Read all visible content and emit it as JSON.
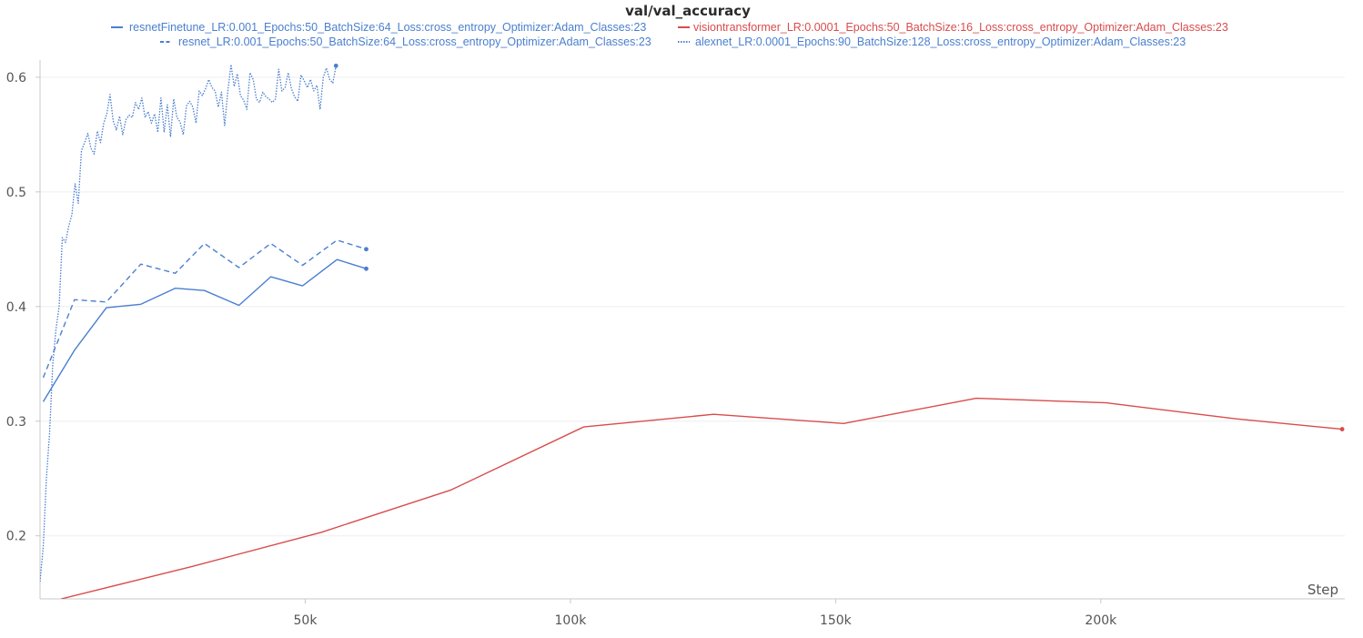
{
  "chart_data": {
    "type": "line",
    "title": "val/val_accuracy",
    "xlabel": "Step",
    "ylabel": "",
    "xlim": [
      0,
      246000
    ],
    "ylim": [
      0.145,
      0.615
    ],
    "x_ticks": [
      50000,
      100000,
      150000,
      200000
    ],
    "x_tick_labels": [
      "50k",
      "100k",
      "150k",
      "200k"
    ],
    "y_ticks": [
      0.2,
      0.3,
      0.4,
      0.5,
      0.6
    ],
    "y_tick_labels": [
      "0.2",
      "0.3",
      "0.4",
      "0.5",
      "0.6"
    ],
    "grid": true,
    "legend_position": "top",
    "series": [
      {
        "name": "resnetFinetune_LR:0.001_Epochs:50_BatchSize:64_Loss:cross_entropy_Optimizer:Adam_Classes:23",
        "color": "#4a7fcf",
        "style": "solid",
        "x": [
          600,
          6500,
          12500,
          19000,
          25500,
          31000,
          37500,
          43500,
          49500,
          56000,
          61500
        ],
        "y": [
          0.317,
          0.362,
          0.399,
          0.402,
          0.416,
          0.414,
          0.401,
          0.426,
          0.418,
          0.441,
          0.433
        ]
      },
      {
        "name": "visiontransformer_LR:0.0001_Epochs:50_BatchSize:16_Loss:cross_entropy_Optimizer:Adam_Classes:23",
        "color": "#d94c4c",
        "style": "solid",
        "x": [
          4000,
          28500,
          53000,
          77500,
          102500,
          127000,
          151500,
          176500,
          201000,
          225500,
          245500
        ],
        "y": [
          0.145,
          0.173,
          0.203,
          0.24,
          0.295,
          0.306,
          0.298,
          0.32,
          0.316,
          0.302,
          0.293
        ]
      },
      {
        "name": "resnet_LR:0.001_Epochs:50_BatchSize:64_Loss:cross_entropy_Optimizer:Adam_Classes:23",
        "color": "#4a7fcf",
        "style": "dashed",
        "x": [
          600,
          6500,
          12500,
          19000,
          25500,
          31000,
          37500,
          43500,
          49500,
          56000,
          61500
        ],
        "y": [
          0.338,
          0.406,
          0.404,
          0.437,
          0.429,
          0.455,
          0.434,
          0.455,
          0.436,
          0.458,
          0.45
        ]
      },
      {
        "name": "alexnet_LR:0.0001_Epochs:90_BatchSize:128_Loss:cross_entropy_Optimizer:Adam_Classes:23",
        "color": "#4a7fcf",
        "style": "dotted",
        "x": [
          0,
          600,
          1200,
          1800,
          2400,
          3000,
          3600,
          4200,
          4800,
          5400,
          6000,
          6600,
          7200,
          7800,
          8400,
          9000,
          9600,
          10200,
          10800,
          11400,
          12000,
          12600,
          13200,
          13800,
          14400,
          15000,
          15600,
          16200,
          16800,
          17400,
          18000,
          18600,
          19200,
          19800,
          20400,
          21000,
          21600,
          22200,
          22800,
          23400,
          24000,
          24600,
          25200,
          25800,
          26400,
          27000,
          27600,
          28200,
          28800,
          29400,
          30000,
          30600,
          31200,
          31800,
          32400,
          33000,
          33600,
          34200,
          34800,
          35400,
          36000,
          36600,
          37200,
          37800,
          38400,
          39000,
          39600,
          40200,
          40800,
          41400,
          42000,
          42600,
          43200,
          43800,
          44400,
          45000,
          45600,
          46200,
          46800,
          47400,
          48000,
          48600,
          49200,
          49800,
          50400,
          51000,
          51600,
          52200,
          52800,
          53400,
          54000,
          54600,
          55200,
          55800
        ],
        "y": [
          0.16,
          0.19,
          0.25,
          0.29,
          0.35,
          0.38,
          0.4,
          0.46,
          0.456,
          0.47,
          0.48,
          0.507,
          0.49,
          0.536,
          0.543,
          0.551,
          0.538,
          0.533,
          0.553,
          0.543,
          0.56,
          0.568,
          0.585,
          0.562,
          0.554,
          0.566,
          0.55,
          0.563,
          0.567,
          0.565,
          0.578,
          0.572,
          0.582,
          0.565,
          0.57,
          0.56,
          0.568,
          0.552,
          0.582,
          0.552,
          0.576,
          0.548,
          0.581,
          0.565,
          0.561,
          0.55,
          0.575,
          0.579,
          0.574,
          0.56,
          0.588,
          0.584,
          0.59,
          0.598,
          0.591,
          0.588,
          0.574,
          0.587,
          0.558,
          0.588,
          0.611,
          0.592,
          0.603,
          0.584,
          0.58,
          0.572,
          0.604,
          0.598,
          0.581,
          0.578,
          0.587,
          0.583,
          0.581,
          0.578,
          0.581,
          0.607,
          0.588,
          0.591,
          0.604,
          0.59,
          0.583,
          0.579,
          0.602,
          0.597,
          0.591,
          0.598,
          0.588,
          0.593,
          0.572,
          0.6,
          0.608,
          0.598,
          0.595,
          0.61
        ]
      }
    ]
  }
}
